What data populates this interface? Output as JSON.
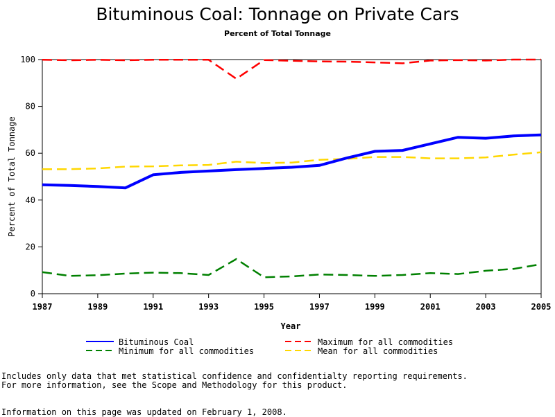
{
  "chart_data": {
    "type": "line",
    "title": "Bituminous Coal: Tonnage on Private Cars",
    "subtitle": "Percent of Total Tonnage",
    "xlabel": "Year",
    "ylabel": "Percent of Total Tonnage",
    "xlim": [
      1987,
      2005
    ],
    "ylim": [
      0,
      100
    ],
    "x_ticks": [
      "1987",
      "1989",
      "1991",
      "1993",
      "1995",
      "1997",
      "1999",
      "2001",
      "2003",
      "2005"
    ],
    "y_ticks": [
      "0",
      "20",
      "40",
      "60",
      "80",
      "100"
    ],
    "legend_position": "bottom",
    "grid": false,
    "x": [
      1987,
      1988,
      1989,
      1990,
      1991,
      1992,
      1993,
      1994,
      1995,
      1996,
      1997,
      1998,
      1999,
      2000,
      2001,
      2002,
      2003,
      2004,
      2005
    ],
    "series": [
      {
        "name": "Bituminous Coal",
        "color": "#0000ff",
        "style": "solid",
        "values": [
          46.5,
          46.2,
          45.8,
          45.2,
          50.8,
          51.8,
          52.4,
          53.0,
          53.5,
          54.0,
          54.8,
          58.0,
          60.8,
          61.2,
          64.0,
          66.8,
          66.4,
          67.4,
          67.8
        ]
      },
      {
        "name": "Maximum for all commodities",
        "color": "#ff0000",
        "style": "dashed",
        "values": [
          99.9,
          99.7,
          99.9,
          99.7,
          99.9,
          99.9,
          99.9,
          91.8,
          99.8,
          99.5,
          99.2,
          99.1,
          98.8,
          98.4,
          99.6,
          99.8,
          99.6,
          100.0,
          100.0
        ]
      },
      {
        "name": "Minimum for all commodities",
        "color": "#008000",
        "style": "dashed",
        "values": [
          9.2,
          7.6,
          7.9,
          8.6,
          9.0,
          8.8,
          8.0,
          14.8,
          7.0,
          7.4,
          8.2,
          8.0,
          7.6,
          8.0,
          8.8,
          8.4,
          9.8,
          10.6,
          12.6
        ]
      },
      {
        "name": "Mean for all commodities",
        "color": "#ffd700",
        "style": "dashed",
        "values": [
          53.2,
          53.2,
          53.5,
          54.3,
          54.4,
          54.8,
          55.0,
          56.4,
          55.8,
          56.0,
          57.2,
          57.6,
          58.4,
          58.4,
          57.8,
          57.8,
          58.2,
          59.4,
          60.4
        ]
      }
    ]
  },
  "footnotes": {
    "line1": "Includes only data that met statistical confidence and confidentialty reporting requirements.",
    "line2": "For more information, see the Scope and Methodology for this product.",
    "line3": "Information on this page was updated on February 1, 2008."
  }
}
